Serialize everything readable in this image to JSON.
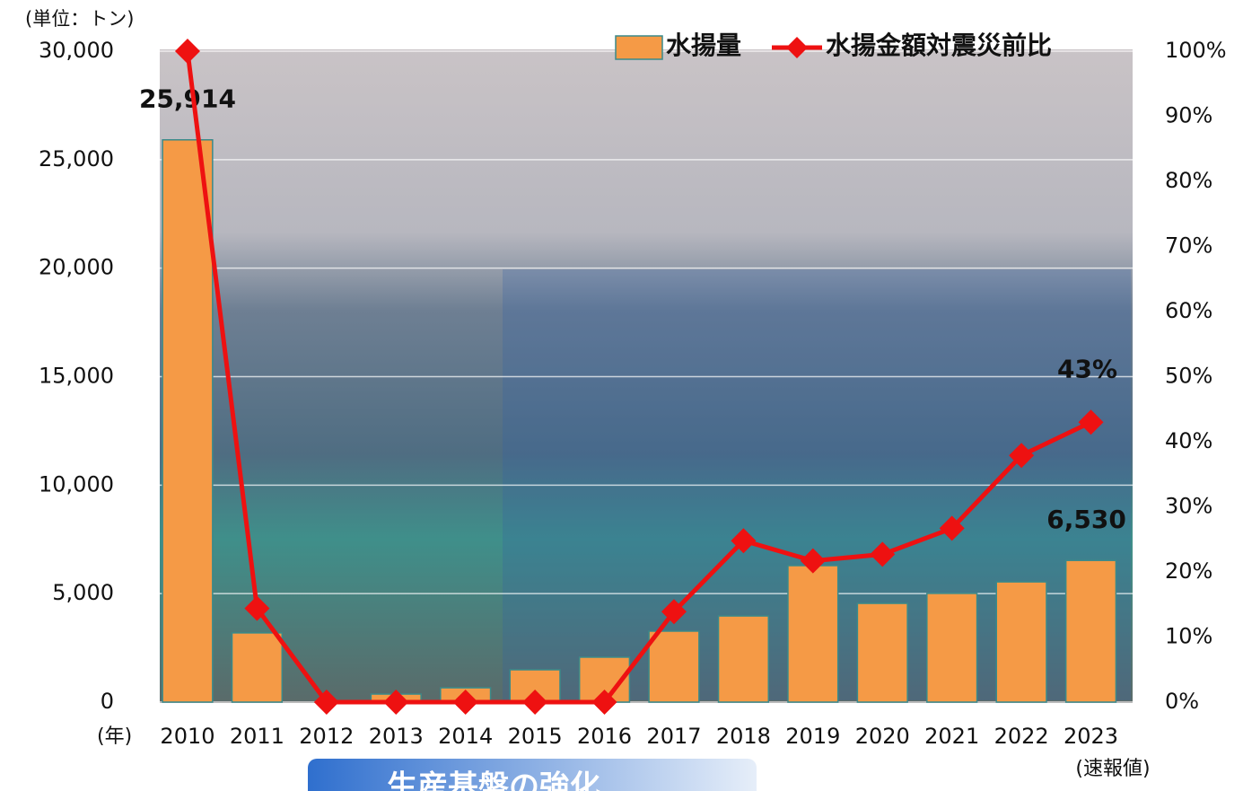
{
  "chart_data": {
    "type": "bar-line",
    "unit_label": "(単位：トン)",
    "x_unit_label": "(年)",
    "note": "(速報値)",
    "banner": "生産基盤の強化",
    "categories": [
      "2010",
      "2011",
      "2012",
      "2013",
      "2014",
      "2015",
      "2016",
      "2017",
      "2018",
      "2019",
      "2020",
      "2021",
      "2022",
      "2023"
    ],
    "series": [
      {
        "name": "水揚量",
        "type": "bar",
        "color": "#f59a46",
        "values": [
          25914,
          3190,
          0,
          370,
          660,
          1490,
          2070,
          3270,
          3970,
          6290,
          4550,
          5010,
          5540,
          6530
        ],
        "value_labels": [
          "25,914",
          null,
          null,
          null,
          null,
          null,
          null,
          null,
          null,
          null,
          null,
          null,
          null,
          "6,530"
        ]
      },
      {
        "name": "水揚金額対震災前比",
        "type": "line",
        "axis": "y2",
        "color": "#ee1111",
        "values": [
          100,
          14.4,
          0,
          0,
          0,
          0,
          0,
          13.9,
          24.8,
          21.7,
          22.7,
          26.7,
          37.9,
          43
        ],
        "value_labels": [
          null,
          null,
          null,
          null,
          null,
          null,
          null,
          null,
          null,
          null,
          null,
          null,
          null,
          "43%"
        ]
      }
    ],
    "ylim": [
      0,
      30000
    ],
    "yticks": [
      0,
      {
        "value": 5000,
        "label": "5,000"
      },
      {
        "value": 10000,
        "label": "10,000"
      },
      {
        "value": 15000,
        "label": "15,000"
      },
      {
        "value": 20000,
        "label": "20,000"
      },
      {
        "value": 25000,
        "label": "25,000"
      },
      {
        "value": 30000,
        "label": "30,000"
      }
    ],
    "y2lim": [
      0,
      100
    ],
    "y2ticks": [
      {
        "value": 0,
        "label": "0%"
      },
      {
        "value": 10,
        "label": "10%"
      },
      {
        "value": 20,
        "label": "20%"
      },
      {
        "value": 30,
        "label": "30%"
      },
      {
        "value": 40,
        "label": "40%"
      },
      {
        "value": 50,
        "label": "50%"
      },
      {
        "value": 60,
        "label": "60%"
      },
      {
        "value": 70,
        "label": "70%"
      },
      {
        "value": 80,
        "label": "80%"
      },
      {
        "value": 90,
        "label": "90%"
      },
      {
        "value": {
          "value": 100,
          "label": "100%"
        },
        "label": "100%"
      }
    ],
    "grid": true,
    "legend": "top-right"
  }
}
